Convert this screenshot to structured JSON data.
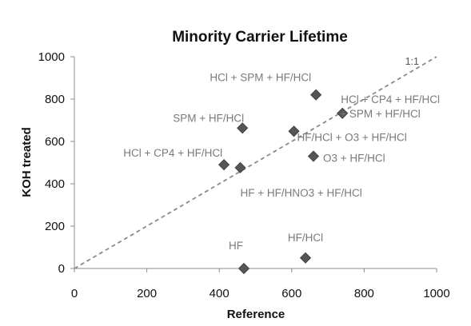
{
  "chart_data": {
    "type": "scatter",
    "title": "Minority Carrier Lifetime",
    "xlabel": "Reference",
    "ylabel": "KOH treated",
    "xlim": [
      0,
      1000
    ],
    "ylim": [
      0,
      1000
    ],
    "xticks": [
      0,
      200,
      400,
      600,
      800,
      1000
    ],
    "yticks": [
      0,
      200,
      400,
      600,
      800,
      1000
    ],
    "grid": false,
    "legend": "none",
    "marker": "diamond",
    "marker_color": "#555555",
    "reference_line": {
      "label": "1:1",
      "slope": 1,
      "style": "dashed",
      "color": "#8a8a8a"
    },
    "points": [
      {
        "label": "HF",
        "x": 468,
        "y": 0
      },
      {
        "label": "HF/HCl",
        "x": 638,
        "y": 50
      },
      {
        "label": "HCl + CP4 + HF/HCl",
        "x": 413,
        "y": 490
      },
      {
        "label": "HF + HF/HNO3 + HF/HCl",
        "x": 458,
        "y": 476
      },
      {
        "label": "SPM + HF/HCl",
        "x": 464,
        "y": 663
      },
      {
        "label": "HF/HCl + O3 + HF/HCl",
        "x": 606,
        "y": 648
      },
      {
        "label": "O3 + HF/HCl",
        "x": 660,
        "y": 530
      },
      {
        "label": "HCl + SPM + HF/HCl",
        "x": 667,
        "y": 820
      },
      {
        "label": "HCl + CP4 + HF/HCl",
        "x": 740,
        "y": 733
      },
      {
        "label": "+ SPM + HF/HCl",
        "x": 740,
        "y": 733
      }
    ]
  }
}
